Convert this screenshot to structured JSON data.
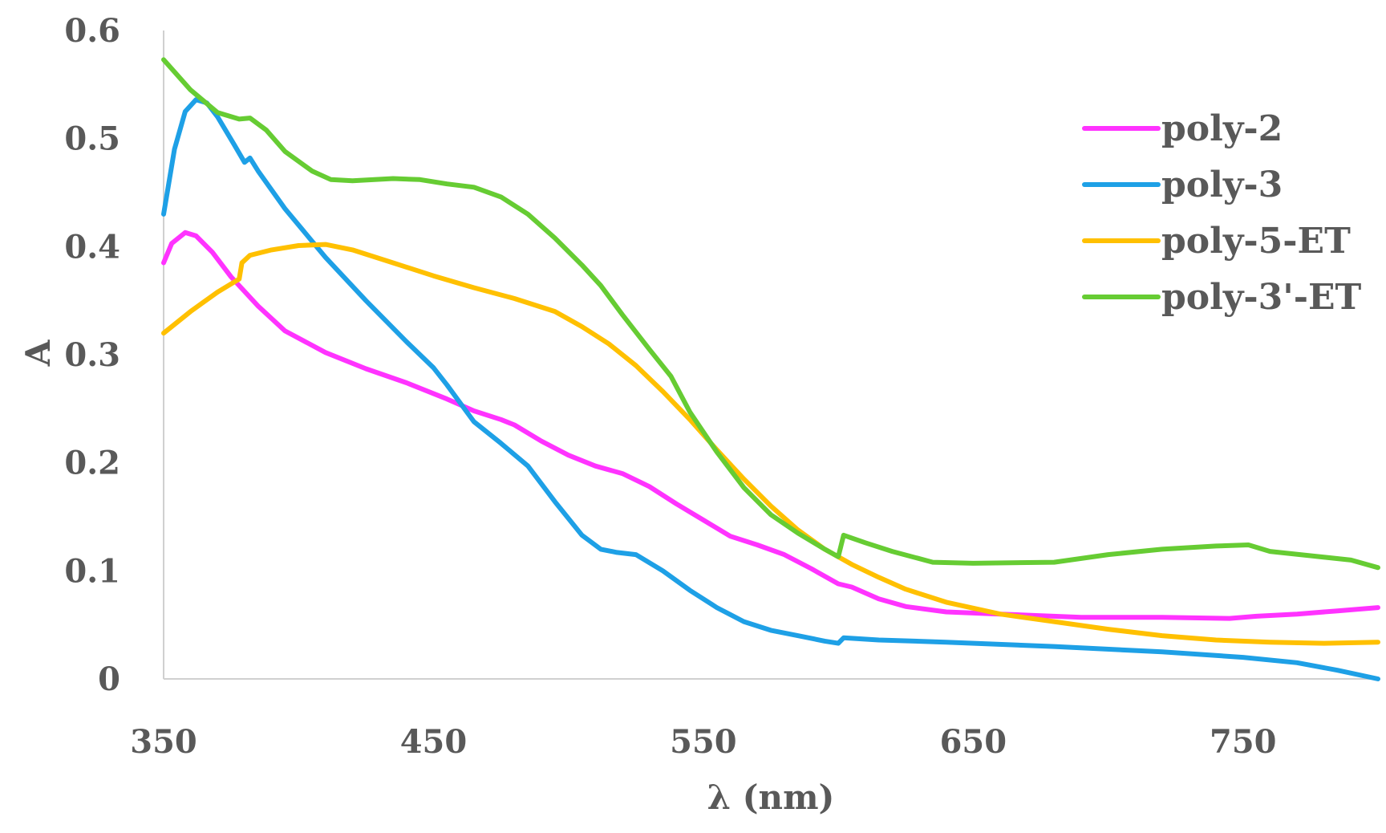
{
  "chart_data": {
    "type": "line",
    "xlabel": "λ (nm)",
    "ylabel": "A",
    "xlim": [
      350,
      800
    ],
    "ylim": [
      0,
      0.6
    ],
    "x_ticks": [
      "350",
      "450",
      "550",
      "650",
      "750"
    ],
    "y_ticks": [
      "0",
      "0.1",
      "0.2",
      "0.3",
      "0.4",
      "0.5",
      "0.6"
    ],
    "grid": false,
    "legend_position": "top-right",
    "series": [
      {
        "name": "poly-2",
        "color": "#ff33ff",
        "points": [
          [
            350,
            0.385
          ],
          [
            353,
            0.403
          ],
          [
            358,
            0.413
          ],
          [
            362,
            0.41
          ],
          [
            368,
            0.395
          ],
          [
            375,
            0.372
          ],
          [
            385,
            0.345
          ],
          [
            395,
            0.322
          ],
          [
            410,
            0.302
          ],
          [
            425,
            0.287
          ],
          [
            440,
            0.274
          ],
          [
            455,
            0.259
          ],
          [
            465,
            0.248
          ],
          [
            475,
            0.24
          ],
          [
            480,
            0.235
          ],
          [
            490,
            0.22
          ],
          [
            500,
            0.207
          ],
          [
            510,
            0.197
          ],
          [
            520,
            0.19
          ],
          [
            530,
            0.178
          ],
          [
            540,
            0.162
          ],
          [
            550,
            0.147
          ],
          [
            560,
            0.132
          ],
          [
            570,
            0.124
          ],
          [
            580,
            0.115
          ],
          [
            590,
            0.102
          ],
          [
            600,
            0.088
          ],
          [
            605,
            0.085
          ],
          [
            615,
            0.074
          ],
          [
            625,
            0.067
          ],
          [
            640,
            0.062
          ],
          [
            660,
            0.06
          ],
          [
            690,
            0.057
          ],
          [
            720,
            0.057
          ],
          [
            745,
            0.056
          ],
          [
            755,
            0.058
          ],
          [
            770,
            0.06
          ],
          [
            785,
            0.063
          ],
          [
            800,
            0.066
          ]
        ]
      },
      {
        "name": "poly-3",
        "color": "#1ea0e6",
        "points": [
          [
            350,
            0.43
          ],
          [
            354,
            0.49
          ],
          [
            358,
            0.525
          ],
          [
            362,
            0.536
          ],
          [
            366,
            0.533
          ],
          [
            370,
            0.52
          ],
          [
            376,
            0.495
          ],
          [
            380,
            0.478
          ],
          [
            382,
            0.482
          ],
          [
            385,
            0.47
          ],
          [
            395,
            0.435
          ],
          [
            410,
            0.39
          ],
          [
            425,
            0.35
          ],
          [
            440,
            0.312
          ],
          [
            450,
            0.288
          ],
          [
            455,
            0.272
          ],
          [
            460,
            0.255
          ],
          [
            465,
            0.238
          ],
          [
            475,
            0.218
          ],
          [
            485,
            0.197
          ],
          [
            495,
            0.164
          ],
          [
            505,
            0.133
          ],
          [
            512,
            0.12
          ],
          [
            518,
            0.117
          ],
          [
            525,
            0.115
          ],
          [
            535,
            0.1
          ],
          [
            545,
            0.082
          ],
          [
            555,
            0.066
          ],
          [
            565,
            0.053
          ],
          [
            575,
            0.045
          ],
          [
            585,
            0.04
          ],
          [
            595,
            0.035
          ],
          [
            600,
            0.033
          ],
          [
            602,
            0.038
          ],
          [
            615,
            0.036
          ],
          [
            640,
            0.034
          ],
          [
            680,
            0.03
          ],
          [
            720,
            0.025
          ],
          [
            750,
            0.02
          ],
          [
            770,
            0.015
          ],
          [
            785,
            0.008
          ],
          [
            800,
            0.0
          ]
        ]
      },
      {
        "name": "poly-5-ET",
        "color": "#ffc000",
        "points": [
          [
            350,
            0.32
          ],
          [
            360,
            0.34
          ],
          [
            370,
            0.358
          ],
          [
            378,
            0.37
          ],
          [
            379,
            0.385
          ],
          [
            382,
            0.392
          ],
          [
            390,
            0.397
          ],
          [
            400,
            0.401
          ],
          [
            410,
            0.402
          ],
          [
            420,
            0.397
          ],
          [
            435,
            0.385
          ],
          [
            450,
            0.373
          ],
          [
            465,
            0.362
          ],
          [
            480,
            0.352
          ],
          [
            495,
            0.34
          ],
          [
            505,
            0.326
          ],
          [
            515,
            0.31
          ],
          [
            525,
            0.29
          ],
          [
            535,
            0.266
          ],
          [
            545,
            0.24
          ],
          [
            555,
            0.212
          ],
          [
            565,
            0.185
          ],
          [
            575,
            0.16
          ],
          [
            585,
            0.138
          ],
          [
            595,
            0.12
          ],
          [
            605,
            0.106
          ],
          [
            615,
            0.094
          ],
          [
            625,
            0.083
          ],
          [
            640,
            0.071
          ],
          [
            660,
            0.06
          ],
          [
            680,
            0.053
          ],
          [
            700,
            0.046
          ],
          [
            720,
            0.04
          ],
          [
            740,
            0.036
          ],
          [
            760,
            0.034
          ],
          [
            780,
            0.033
          ],
          [
            800,
            0.034
          ]
        ]
      },
      {
        "name": "poly-3'-ET",
        "color": "#66cc33",
        "points": [
          [
            350,
            0.573
          ],
          [
            360,
            0.545
          ],
          [
            370,
            0.524
          ],
          [
            378,
            0.518
          ],
          [
            382,
            0.519
          ],
          [
            388,
            0.508
          ],
          [
            395,
            0.488
          ],
          [
            405,
            0.47
          ],
          [
            412,
            0.462
          ],
          [
            420,
            0.461
          ],
          [
            435,
            0.463
          ],
          [
            445,
            0.462
          ],
          [
            455,
            0.458
          ],
          [
            465,
            0.455
          ],
          [
            475,
            0.446
          ],
          [
            485,
            0.43
          ],
          [
            495,
            0.408
          ],
          [
            505,
            0.383
          ],
          [
            512,
            0.364
          ],
          [
            520,
            0.337
          ],
          [
            530,
            0.305
          ],
          [
            538,
            0.28
          ],
          [
            545,
            0.247
          ],
          [
            555,
            0.21
          ],
          [
            565,
            0.177
          ],
          [
            575,
            0.152
          ],
          [
            585,
            0.135
          ],
          [
            595,
            0.12
          ],
          [
            600,
            0.113
          ],
          [
            602,
            0.133
          ],
          [
            610,
            0.126
          ],
          [
            620,
            0.118
          ],
          [
            635,
            0.108
          ],
          [
            650,
            0.107
          ],
          [
            680,
            0.108
          ],
          [
            700,
            0.115
          ],
          [
            720,
            0.12
          ],
          [
            740,
            0.123
          ],
          [
            752,
            0.124
          ],
          [
            760,
            0.118
          ],
          [
            775,
            0.114
          ],
          [
            790,
            0.11
          ],
          [
            800,
            0.103
          ]
        ]
      }
    ]
  }
}
